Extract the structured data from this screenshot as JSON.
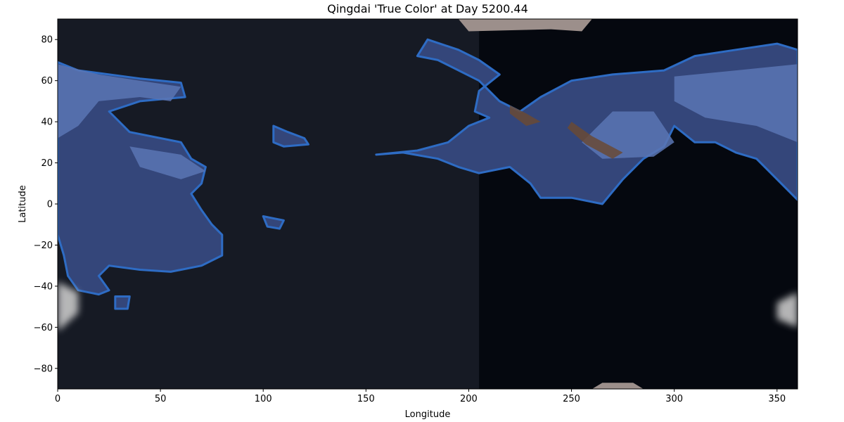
{
  "chart_data": {
    "type": "heatmap",
    "title": "Qingdai 'True Color' at Day 5200.44",
    "xlabel": "Longitude",
    "ylabel": "Latitude",
    "xlim": [
      0,
      360
    ],
    "ylim": [
      -90,
      90
    ],
    "x_ticks": [
      0,
      50,
      100,
      150,
      200,
      250,
      300,
      350
    ],
    "y_ticks": [
      -80,
      -60,
      -40,
      -20,
      0,
      20,
      40,
      60,
      80
    ],
    "x_tick_labels": [
      "0",
      "50",
      "100",
      "150",
      "200",
      "250",
      "300",
      "350"
    ],
    "y_tick_labels": [
      "−80",
      "−60",
      "−40",
      "−20",
      "0",
      "20",
      "40",
      "60",
      "80"
    ],
    "grid": false,
    "colors": {
      "ocean_day": "#161a24",
      "ocean_night": "#05080f",
      "land": "#34467a",
      "land_bright": "#5a75b4",
      "coastline": "#2e6cc4",
      "ice": "#c8c8c8",
      "desert": "#9c8f8b",
      "mountain": "#6a4a35"
    },
    "regions": {
      "night_side": [
        [
          205,
          90
        ],
        [
          360,
          90
        ],
        [
          360,
          -90
        ],
        [
          205,
          -90
        ]
      ],
      "continents": [
        {
          "name": "west",
          "outline": [
            [
              0,
              69
            ],
            [
              10,
              65
            ],
            [
              25,
              63
            ],
            [
              40,
              61
            ],
            [
              60,
              59
            ],
            [
              62,
              52
            ],
            [
              40,
              50
            ],
            [
              25,
              45
            ],
            [
              35,
              35
            ],
            [
              60,
              30
            ],
            [
              65,
              22
            ],
            [
              72,
              18
            ],
            [
              70,
              10
            ],
            [
              65,
              5
            ],
            [
              70,
              -3
            ],
            [
              75,
              -10
            ],
            [
              80,
              -15
            ],
            [
              80,
              -25
            ],
            [
              70,
              -30
            ],
            [
              55,
              -33
            ],
            [
              40,
              -32
            ],
            [
              25,
              -30
            ],
            [
              20,
              -35
            ],
            [
              25,
              -42
            ],
            [
              20,
              -44
            ],
            [
              10,
              -42
            ],
            [
              5,
              -35
            ],
            [
              3,
              -25
            ],
            [
              0,
              -15
            ],
            [
              0,
              5
            ]
          ]
        },
        {
          "name": "east",
          "outline": [
            [
              175,
              26
            ],
            [
              190,
              30
            ],
            [
              200,
              38
            ],
            [
              210,
              42
            ],
            [
              203,
              45
            ],
            [
              205,
              55
            ],
            [
              215,
              63
            ],
            [
              205,
              70
            ],
            [
              195,
              75
            ],
            [
              180,
              80
            ],
            [
              175,
              72
            ],
            [
              185,
              70
            ],
            [
              205,
              60
            ],
            [
              215,
              50
            ],
            [
              225,
              45
            ],
            [
              235,
              52
            ],
            [
              250,
              60
            ],
            [
              270,
              63
            ],
            [
              295,
              65
            ],
            [
              310,
              72
            ],
            [
              330,
              75
            ],
            [
              350,
              78
            ],
            [
              360,
              75
            ],
            [
              360,
              2
            ],
            [
              350,
              12
            ],
            [
              340,
              22
            ],
            [
              330,
              25
            ],
            [
              320,
              30
            ],
            [
              310,
              30
            ],
            [
              300,
              38
            ],
            [
              295,
              28
            ],
            [
              285,
              22
            ],
            [
              275,
              12
            ],
            [
              265,
              0
            ],
            [
              250,
              3
            ],
            [
              235,
              3
            ],
            [
              230,
              10
            ],
            [
              220,
              18
            ],
            [
              205,
              15
            ],
            [
              195,
              18
            ],
            [
              185,
              22
            ],
            [
              168,
              25
            ],
            [
              155,
              24
            ]
          ]
        },
        {
          "name": "islet-a",
          "outline": [
            [
              105,
              38
            ],
            [
              112,
              35
            ],
            [
              120,
              32
            ],
            [
              122,
              29
            ],
            [
              110,
              28
            ],
            [
              105,
              30
            ]
          ]
        },
        {
          "name": "islet-b",
          "outline": [
            [
              100,
              -6
            ],
            [
              110,
              -8
            ],
            [
              108,
              -12
            ],
            [
              102,
              -11
            ]
          ]
        },
        {
          "name": "islet-c",
          "outline": [
            [
              28,
              -45
            ],
            [
              35,
              -45
            ],
            [
              34,
              -51
            ],
            [
              28,
              -51
            ]
          ]
        }
      ],
      "bright_bands": [
        {
          "name": "west-band",
          "outline": [
            [
              0,
              68
            ],
            [
              20,
              63
            ],
            [
              40,
              60
            ],
            [
              60,
              57
            ],
            [
              55,
              50
            ],
            [
              40,
              52
            ],
            [
              20,
              50
            ],
            [
              10,
              38
            ],
            [
              0,
              32
            ]
          ]
        },
        {
          "name": "west-lower-band",
          "outline": [
            [
              35,
              28
            ],
            [
              60,
              24
            ],
            [
              72,
              16
            ],
            [
              60,
              12
            ],
            [
              40,
              18
            ]
          ]
        },
        {
          "name": "east-band",
          "outline": [
            [
              300,
              62
            ],
            [
              330,
              65
            ],
            [
              360,
              68
            ],
            [
              360,
              30
            ],
            [
              340,
              38
            ],
            [
              315,
              42
            ],
            [
              300,
              50
            ]
          ]
        },
        {
          "name": "east-mid-band",
          "outline": [
            [
              270,
              45
            ],
            [
              290,
              45
            ],
            [
              300,
              30
            ],
            [
              290,
              23
            ],
            [
              265,
              22
            ],
            [
              255,
              30
            ]
          ]
        }
      ],
      "ice_caps": [
        {
          "name": "north-cap",
          "outline": [
            [
              195,
              90
            ],
            [
              260,
              90
            ],
            [
              255,
              84
            ],
            [
              240,
              85
            ],
            [
              200,
              84
            ]
          ]
        },
        {
          "name": "south-cap",
          "outline": [
            [
              260,
              -90
            ],
            [
              285,
              -90
            ],
            [
              280,
              -87
            ],
            [
              265,
              -87
            ]
          ]
        },
        {
          "name": "west-edge-glow",
          "outline": [
            [
              0,
              -38
            ],
            [
              10,
              -43
            ],
            [
              10,
              -53
            ],
            [
              0,
              -62
            ]
          ]
        },
        {
          "name": "east-edge-glow",
          "outline": [
            [
              360,
              -43
            ],
            [
              350,
              -48
            ],
            [
              350,
              -56
            ],
            [
              360,
              -60
            ]
          ]
        }
      ],
      "ridges": [
        {
          "name": "ridge-1",
          "outline": [
            [
              220,
              48
            ],
            [
              228,
              44
            ],
            [
              235,
              40
            ],
            [
              228,
              38
            ],
            [
              220,
              44
            ]
          ]
        },
        {
          "name": "ridge-2",
          "outline": [
            [
              250,
              40
            ],
            [
              260,
              33
            ],
            [
              275,
              25
            ],
            [
              270,
              22
            ],
            [
              257,
              29
            ],
            [
              248,
              37
            ]
          ]
        }
      ]
    }
  }
}
